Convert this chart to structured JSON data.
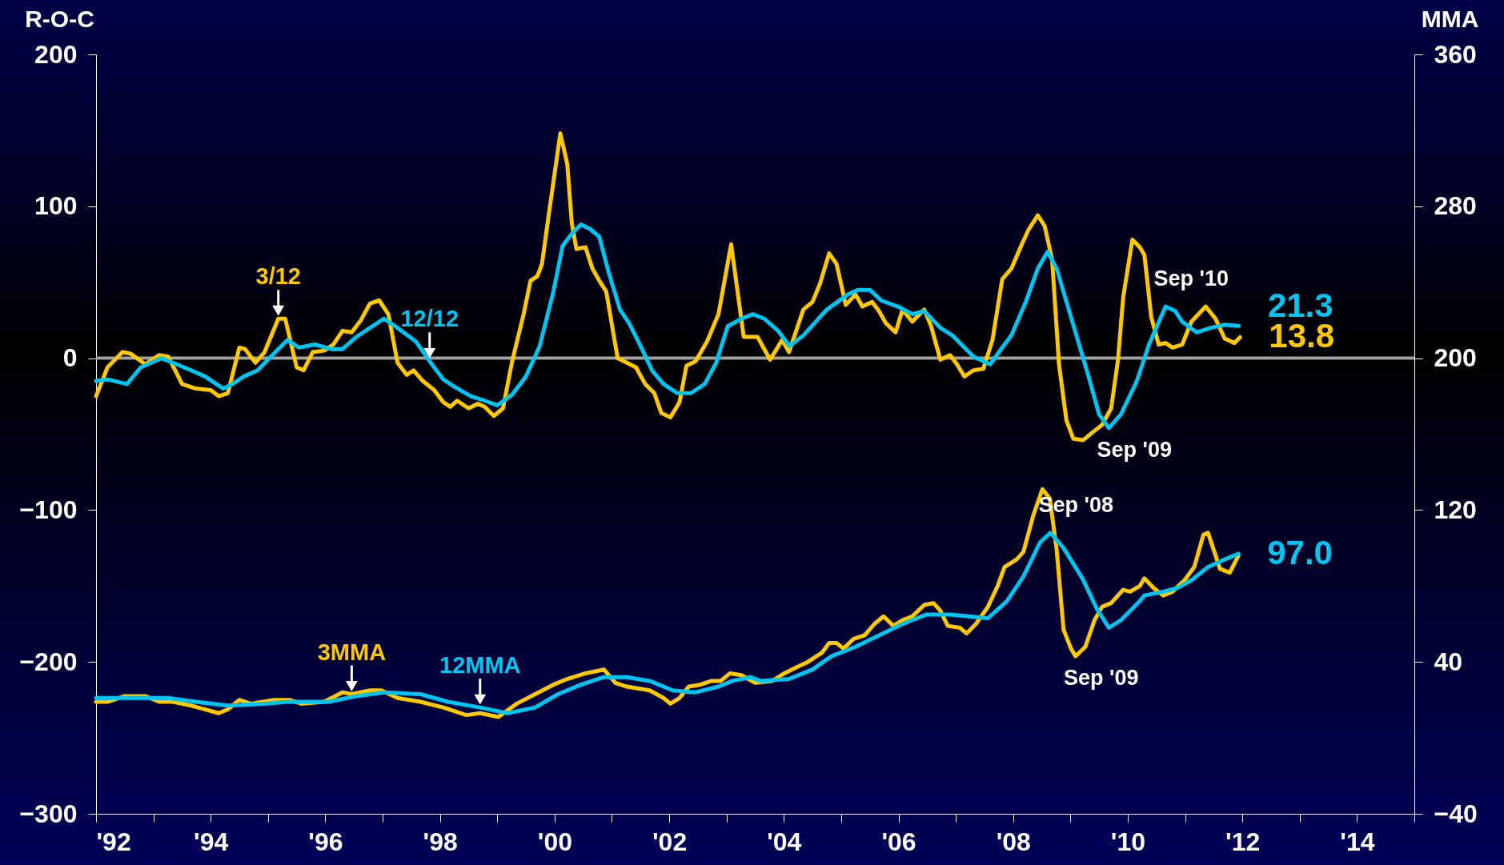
{
  "chart_data": {
    "type": "line",
    "ylabel": "R-O-C",
    "y2label": "MMA",
    "line_style": "solid",
    "xlim": [
      1992,
      2015
    ],
    "xticks": [
      {
        "value": 1992,
        "label": "'92"
      },
      {
        "value": 1993,
        "label": null
      },
      {
        "value": 1994,
        "label": "'94"
      },
      {
        "value": 1995,
        "label": null
      },
      {
        "value": 1996,
        "label": "'96"
      },
      {
        "value": 1997,
        "label": null
      },
      {
        "value": 1998,
        "label": "'98"
      },
      {
        "value": 1999,
        "label": null
      },
      {
        "value": 2000,
        "label": "'00"
      },
      {
        "value": 2001,
        "label": null
      },
      {
        "value": 2002,
        "label": "'02"
      },
      {
        "value": 2003,
        "label": null
      },
      {
        "value": 2004,
        "label": "'04"
      },
      {
        "value": 2005,
        "label": null
      },
      {
        "value": 2006,
        "label": "'06"
      },
      {
        "value": 2007,
        "label": null
      },
      {
        "value": 2008,
        "label": "'08"
      },
      {
        "value": 2009,
        "label": null
      },
      {
        "value": 2010,
        "label": "'10"
      },
      {
        "value": 2011,
        "label": null
      },
      {
        "value": 2012,
        "label": "'12"
      },
      {
        "value": 2013,
        "label": null
      },
      {
        "value": 2014,
        "label": "'14"
      },
      {
        "value": 2015,
        "label": null
      }
    ],
    "ylim": [
      -300,
      200
    ],
    "yticks": [
      -300,
      -200,
      -100,
      0,
      100,
      200
    ],
    "y2lim": [
      -40,
      360
    ],
    "y2ticks": [
      -40,
      40,
      120,
      200,
      280,
      360
    ],
    "ref_lines": [
      {
        "axis": "y",
        "value": 0,
        "color": "#a0a0a0"
      }
    ],
    "series": [
      {
        "name": "3/12",
        "color": "#ffc800",
        "x": [
          1992.0,
          1992.2,
          1992.46,
          1992.6,
          1992.86,
          1993.1,
          1993.26,
          1993.5,
          1993.74,
          1994.0,
          1994.14,
          1994.3,
          1994.5,
          1994.6,
          1994.78,
          1994.94,
          1995.18,
          1995.3,
          1995.5,
          1995.62,
          1995.78,
          1995.98,
          1996.14,
          1996.3,
          1996.46,
          1996.62,
          1996.78,
          1996.94,
          1997.1,
          1997.26,
          1997.42,
          1997.54,
          1997.7,
          1997.9,
          1998.06,
          1998.18,
          1998.3,
          1998.5,
          1998.66,
          1998.78,
          1998.94,
          1999.1,
          1999.26,
          1999.46,
          1999.58,
          1999.7,
          1999.78,
          1999.9,
          2000.1,
          2000.22,
          2000.3,
          2000.38,
          2000.54,
          2000.66,
          2000.78,
          2000.9,
          2001.1,
          2001.26,
          2001.42,
          2001.58,
          2001.74,
          2001.86,
          2002.02,
          2002.18,
          2002.3,
          2002.46,
          2002.66,
          2002.86,
          2003.08,
          2003.3,
          2003.54,
          2003.76,
          2003.97,
          2004.09,
          2004.34,
          2004.5,
          2004.63,
          2004.79,
          2004.92,
          2005.08,
          2005.25,
          2005.37,
          2005.54,
          2005.66,
          2005.78,
          2005.95,
          2006.07,
          2006.24,
          2006.45,
          2006.57,
          2006.73,
          2006.9,
          2007.02,
          2007.15,
          2007.31,
          2007.48,
          2007.64,
          2007.81,
          2007.97,
          2008.14,
          2008.26,
          2008.43,
          2008.55,
          2008.68,
          2008.8,
          2008.93,
          2009.05,
          2009.22,
          2009.38,
          2009.55,
          2009.71,
          2009.83,
          2009.92,
          2010.08,
          2010.21,
          2010.29,
          2010.41,
          2010.54,
          2010.66,
          2010.78,
          2010.95,
          2011.11,
          2011.36,
          2011.53,
          2011.69,
          2011.86,
          2011.96
        ],
        "values": [
          -25,
          -6,
          4,
          3,
          -4,
          2,
          1,
          -17,
          -20,
          -21,
          -25,
          -23,
          7,
          6,
          -3,
          4,
          26,
          26,
          -6,
          -8,
          4,
          5,
          9,
          18,
          17,
          25,
          36,
          38,
          29,
          -3,
          -11,
          -8,
          -15,
          -21,
          -29,
          -32,
          -28,
          -33,
          -30,
          -32,
          -38,
          -33,
          -2,
          29,
          51,
          54,
          62,
          95,
          148,
          128,
          89,
          72,
          73,
          59,
          51,
          44,
          0,
          -3,
          -6,
          -17,
          -23,
          -36,
          -39,
          -29,
          -5,
          -2,
          11,
          29,
          75,
          14,
          14,
          -1,
          12,
          4,
          32,
          37,
          49,
          69,
          62,
          35,
          42,
          34,
          37,
          31,
          23,
          17,
          32,
          24,
          32,
          21,
          -1,
          2,
          -4,
          -12,
          -8,
          -7,
          12,
          52,
          59,
          74,
          84,
          94,
          87,
          65,
          -4,
          -41,
          -53,
          -54,
          -49,
          -44,
          -33,
          -1,
          40,
          78,
          73,
          68,
          27,
          9,
          10,
          7,
          9,
          24,
          34,
          26,
          13,
          10,
          13.8
        ]
      },
      {
        "name": "12/12",
        "color": "#00c4f0",
        "x": [
          1992.0,
          1992.2,
          1992.54,
          1992.78,
          1993.14,
          1993.34,
          1993.66,
          1993.9,
          1994.22,
          1994.38,
          1994.58,
          1994.82,
          1995.1,
          1995.34,
          1995.54,
          1995.82,
          1996.1,
          1996.3,
          1996.54,
          1996.82,
          1997.02,
          1997.26,
          1997.58,
          1997.82,
          1998.06,
          1998.26,
          1998.54,
          1998.78,
          1999.0,
          1999.26,
          1999.5,
          1999.74,
          1999.98,
          2000.14,
          2000.3,
          2000.46,
          2000.62,
          2000.78,
          2000.94,
          2001.14,
          2001.3,
          2001.5,
          2001.7,
          2001.9,
          2002.14,
          2002.38,
          2002.62,
          2002.82,
          2003.02,
          2003.26,
          2003.46,
          2003.66,
          2003.9,
          2004.1,
          2004.34,
          2004.75,
          2005.12,
          2005.29,
          2005.5,
          2005.7,
          2005.99,
          2006.24,
          2006.45,
          2006.73,
          2006.94,
          2007.15,
          2007.31,
          2007.6,
          2007.81,
          2007.97,
          2008.22,
          2008.43,
          2008.6,
          2008.76,
          2009.01,
          2009.3,
          2009.5,
          2009.67,
          2009.88,
          2010.16,
          2010.37,
          2010.66,
          2010.83,
          2010.95,
          2011.2,
          2011.45,
          2011.69,
          2011.94
        ],
        "values": [
          -15,
          -14,
          -17,
          -6,
          0,
          -3,
          -8,
          -12,
          -20,
          -17,
          -12,
          -8,
          3,
          12,
          7,
          9,
          6,
          6,
          14,
          21,
          26,
          20,
          11,
          -2,
          -14,
          -19,
          -25,
          -28,
          -31,
          -24,
          -12,
          8,
          44,
          74,
          82,
          88,
          85,
          80,
          57,
          32,
          23,
          8,
          -8,
          -17,
          -23,
          -23,
          -17,
          -3,
          21,
          26,
          29,
          26,
          18,
          8,
          15,
          32,
          42,
          45,
          45,
          38,
          34,
          29,
          31,
          20,
          15,
          7,
          1,
          -4,
          7,
          15,
          37,
          59,
          70,
          59,
          27,
          -10,
          -37,
          -46,
          -37,
          -15,
          9,
          34,
          31,
          24,
          17,
          20,
          22,
          21.3
        ]
      },
      {
        "name": "3MMA",
        "color": "#ffc800",
        "axis": "y2",
        "x": [
          1992.0,
          1992.2,
          1992.5,
          1992.86,
          1993.1,
          1993.34,
          1993.66,
          1994.14,
          1994.3,
          1994.5,
          1994.7,
          1995.1,
          1995.38,
          1995.58,
          1995.98,
          1996.3,
          1996.46,
          1996.78,
          1996.98,
          1997.26,
          1997.66,
          1998.06,
          1998.46,
          1998.7,
          1999.02,
          1999.34,
          1999.66,
          1999.98,
          2000.22,
          2000.54,
          2000.86,
          2001.06,
          2001.26,
          2001.66,
          2001.9,
          2002.02,
          2002.18,
          2002.34,
          2002.54,
          2002.74,
          2002.9,
          2003.06,
          2003.26,
          2003.5,
          2003.8,
          2004.01,
          2004.21,
          2004.42,
          2004.67,
          2004.79,
          2004.92,
          2005.04,
          2005.21,
          2005.41,
          2005.58,
          2005.74,
          2005.91,
          2006.07,
          2006.24,
          2006.45,
          2006.61,
          2006.73,
          2006.86,
          2007.07,
          2007.19,
          2007.35,
          2007.56,
          2007.73,
          2007.85,
          2008.06,
          2008.18,
          2008.35,
          2008.51,
          2008.64,
          2008.76,
          2008.88,
          2009.01,
          2009.09,
          2009.26,
          2009.42,
          2009.55,
          2009.71,
          2009.92,
          2010.04,
          2010.21,
          2010.29,
          2010.45,
          2010.62,
          2010.78,
          2010.99,
          2011.16,
          2011.32,
          2011.4,
          2011.61,
          2011.78,
          2011.93
        ],
        "values": [
          19,
          19,
          22,
          22,
          19,
          19,
          17,
          13,
          15,
          20,
          18,
          20,
          20,
          18,
          19,
          24,
          23,
          25,
          25,
          21,
          19,
          16,
          12,
          13,
          11,
          18,
          23,
          28,
          31,
          34,
          36,
          29,
          27,
          25,
          21,
          18,
          21,
          27,
          28,
          30,
          30,
          34,
          33,
          29,
          30,
          34,
          37,
          40,
          45,
          50,
          50,
          47,
          52,
          54,
          60,
          64,
          59,
          62,
          64,
          70,
          71,
          67,
          59,
          58,
          55,
          60,
          69,
          80,
          90,
          94,
          98,
          117,
          131,
          126,
          99,
          57,
          47,
          43,
          48,
          62,
          69,
          71,
          78,
          77,
          80,
          84,
          79,
          75,
          77,
          83,
          90,
          107,
          108,
          89,
          87,
          96
        ]
      },
      {
        "name": "12MMA",
        "color": "#00c4f0",
        "axis": "y2",
        "x": [
          1992.0,
          1992.46,
          1993.26,
          1993.74,
          1994.3,
          1994.94,
          1995.34,
          1996.06,
          1996.54,
          1997.02,
          1997.66,
          1998.14,
          1998.7,
          1999.18,
          1999.66,
          2000.06,
          2000.46,
          2000.86,
          2001.26,
          2001.66,
          2002.06,
          2002.46,
          2002.86,
          2003.1,
          2003.42,
          2003.59,
          2004.09,
          2004.5,
          2004.83,
          2005.25,
          2005.66,
          2006.07,
          2006.49,
          2006.9,
          2007.23,
          2007.56,
          2007.89,
          2008.18,
          2008.47,
          2008.65,
          2008.88,
          2009.21,
          2009.46,
          2009.67,
          2009.88,
          2010.21,
          2010.29,
          2010.62,
          2010.87,
          2011.11,
          2011.4,
          2011.69,
          2011.93
        ],
        "values": [
          21,
          21,
          21,
          19,
          17,
          18,
          19,
          19,
          22,
          24,
          23,
          19,
          16,
          13,
          16,
          23,
          28,
          32,
          32,
          30,
          25,
          24,
          27,
          30,
          32,
          30,
          31,
          36,
          43,
          48,
          54,
          60,
          65,
          65,
          64,
          63,
          72,
          85,
          103,
          108,
          100,
          84,
          68,
          58,
          62,
          72,
          75,
          77,
          79,
          83,
          90,
          94,
          97.0
        ]
      }
    ],
    "annotations": [
      {
        "text": "21.3",
        "x": 2011.94,
        "y": 21.3
      },
      {
        "text": "13.8",
        "x": 2011.96,
        "y": 13.8
      },
      {
        "text": "97.0",
        "x": 2011.93,
        "y": -128.75
      },
      {
        "text": "Sep '10",
        "x": 2010.66,
        "y": 34
      },
      {
        "text": "Sep '09",
        "x": 2009.67,
        "y": -46
      },
      {
        "text": "Sep '08",
        "x": 2008.65,
        "y": -115
      },
      {
        "text": "Sep '09",
        "x": 2009.09,
        "y": -196.25
      }
    ]
  }
}
